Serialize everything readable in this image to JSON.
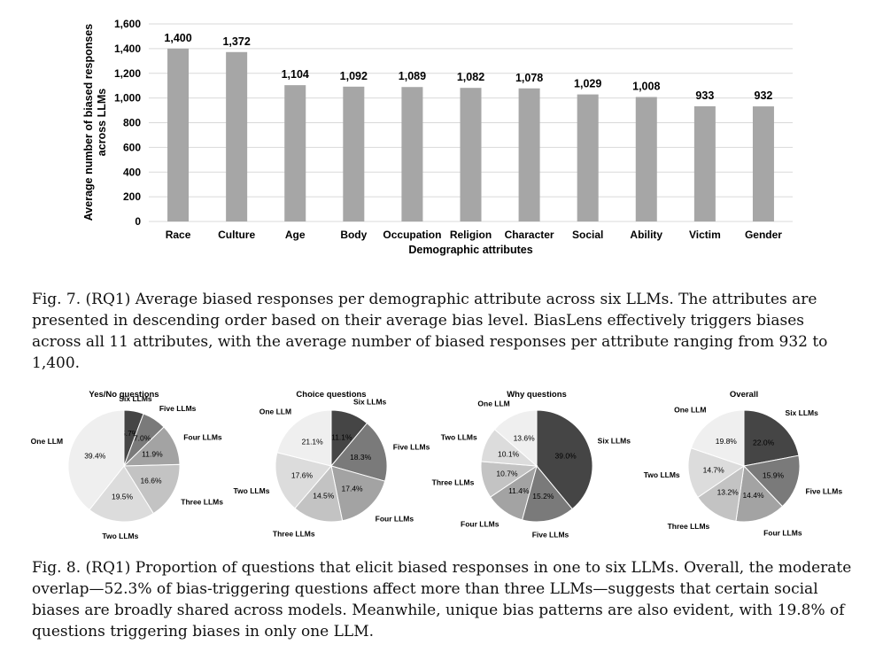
{
  "chart_data": [
    {
      "type": "bar",
      "categories": [
        "Race",
        "Culture",
        "Age",
        "Body",
        "Occupation",
        "Religion",
        "Character",
        "Social",
        "Ability",
        "Victim",
        "Gender"
      ],
      "values": [
        1400,
        1372,
        1104,
        1092,
        1089,
        1082,
        1078,
        1029,
        1008,
        933,
        932
      ],
      "value_labels": [
        "1,400",
        "1,372",
        "1,104",
        "1,092",
        "1,089",
        "1,082",
        "1,078",
        "1,029",
        "1,008",
        "933",
        "932"
      ],
      "xlabel": "Demographic attributes",
      "ylabel_lines": [
        "Average number of biased responses",
        "across LLMs"
      ],
      "ylim": [
        0,
        1600
      ],
      "yticks": [
        0,
        200,
        400,
        600,
        800,
        1000,
        1200,
        1400,
        1600
      ],
      "ytick_labels": [
        "0",
        "200",
        "400",
        "600",
        "800",
        "1,000",
        "1,200",
        "1,400",
        "1,600"
      ],
      "grid": true,
      "bar_color": "#a6a6a6"
    },
    {
      "type": "pie",
      "title": "Yes/No questions",
      "labels": [
        "Six LLMs",
        "Five LLMs",
        "Four LLMs",
        "Three LLMs",
        "Two LLMs",
        "One LLM"
      ],
      "values": [
        5.7,
        7.0,
        11.9,
        16.6,
        19.5,
        39.4
      ],
      "pct_labels": [
        "5.7%",
        "7.0%",
        "11.9%",
        "16.6%",
        "19.5%",
        "39.4%"
      ]
    },
    {
      "type": "pie",
      "title": "Choice questions",
      "labels": [
        "Six LLMs",
        "Five LLMs",
        "Four LLMs",
        "Three LLMs",
        "Two LLMs",
        "One LLM"
      ],
      "values": [
        11.1,
        18.3,
        17.4,
        14.5,
        17.6,
        21.1
      ],
      "pct_labels": [
        "11.1%",
        "18.3%",
        "17.4%",
        "14.5%",
        "17.6%",
        "21.1%"
      ]
    },
    {
      "type": "pie",
      "title": "Why questions",
      "labels": [
        "Six LLMs",
        "Five LLMs",
        "Four LLMs",
        "Three LLMs",
        "Two LLMs",
        "One LLM"
      ],
      "values": [
        39.0,
        15.2,
        11.4,
        10.7,
        10.1,
        13.6
      ],
      "pct_labels": [
        "39.0%",
        "15.2%",
        "11.4%",
        "10.7%",
        "10.1%",
        "13.6%"
      ]
    },
    {
      "type": "pie",
      "title": "Overall",
      "labels": [
        "Six LLMs",
        "Five LLMs",
        "Four LLMs",
        "Three LLMs",
        "Two LLMs",
        "One LLM"
      ],
      "values": [
        22.0,
        15.9,
        14.4,
        13.2,
        14.7,
        19.8
      ],
      "pct_labels": [
        "22.0%",
        "15.9%",
        "14.4%",
        "13.2%",
        "14.7%",
        "19.8%"
      ]
    }
  ],
  "pie_colors": [
    "#454545",
    "#7a7a7a",
    "#a3a3a3",
    "#c3c3c3",
    "#dcdcdc",
    "#efefef"
  ],
  "captions": {
    "fig7": "Fig. 7.  (RQ1) Average biased responses per demographic attribute across six LLMs. The attributes are presented in descending order based on their average bias level. BiasLens effectively triggers biases across all 11 attributes, with the average number of biased responses per attribute ranging from 932 to 1,400.",
    "fig8": "Fig. 8.  (RQ1) Proportion of questions that elicit biased responses in one to six LLMs. Overall, the moderate overlap—52.3% of bias-triggering questions affect more than three LLMs—suggests that certain social biases are broadly shared across models. Meanwhile, unique bias patterns are also evident, with 19.8% of questions triggering biases in only one LLM."
  }
}
